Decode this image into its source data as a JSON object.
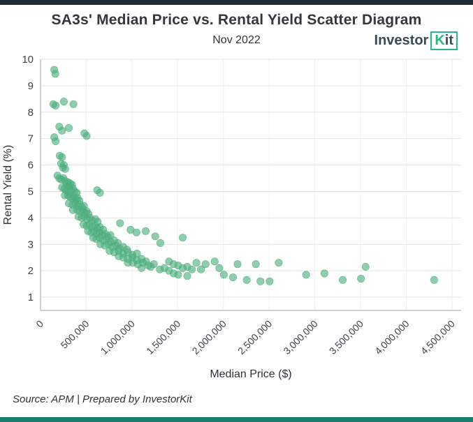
{
  "header": {
    "title": "SA3s' Median Price vs. Rental Yield Scatter Diagram",
    "subtitle": "Nov 2022",
    "logo": {
      "part1": "Investor",
      "part2_k": "K",
      "part2_it": "it"
    }
  },
  "footer": {
    "source": "Source: APM | Prepared by InvestorKit"
  },
  "colors": {
    "brand_green": "#2bb784",
    "point_green": "#4caf7d",
    "top_bar": "#212b36",
    "bottom_bar": "#1b7d6e",
    "gridline": "#e3e3e3",
    "axis_line": "#a6a6a6"
  },
  "chart_data": {
    "type": "scatter",
    "title": "SA3s' Median Price vs. Rental Yield Scatter Diagram",
    "subtitle": "Nov 2022",
    "xlabel": "Median Price ($)",
    "ylabel": "Rental Yield (%)",
    "xlim": [
      0,
      4600000
    ],
    "ylim": [
      0.5,
      10
    ],
    "grid": true,
    "legend": "none",
    "x_ticks": [
      0,
      500000,
      1000000,
      1500000,
      2000000,
      2500000,
      3000000,
      3500000,
      4000000,
      4500000
    ],
    "x_tick_labels": [
      "0",
      "500,000",
      "1,000,000",
      "1,500,000",
      "2,000,000",
      "2,500,000",
      "3,000,000",
      "3,500,000",
      "4,000,000",
      "4,500,000"
    ],
    "y_ticks": [
      1,
      2,
      3,
      4,
      5,
      6,
      7,
      8,
      9,
      10
    ],
    "point_color": "#4caf7d",
    "points": [
      [
        150000,
        9.6
      ],
      [
        162000,
        9.45
      ],
      [
        140000,
        8.3
      ],
      [
        165000,
        8.25
      ],
      [
        255000,
        8.4
      ],
      [
        360000,
        8.3
      ],
      [
        205000,
        7.45
      ],
      [
        235000,
        7.3
      ],
      [
        310000,
        7.4
      ],
      [
        150000,
        7.05
      ],
      [
        165000,
        6.9
      ],
      [
        480000,
        7.2
      ],
      [
        505000,
        7.1
      ],
      [
        210000,
        6.35
      ],
      [
        235000,
        6.3
      ],
      [
        225000,
        6.05
      ],
      [
        255000,
        6.0
      ],
      [
        245000,
        5.9
      ],
      [
        270000,
        5.85
      ],
      [
        185000,
        5.6
      ],
      [
        205000,
        5.5
      ],
      [
        225000,
        5.45
      ],
      [
        250000,
        5.5
      ],
      [
        270000,
        5.4
      ],
      [
        285000,
        5.3
      ],
      [
        300000,
        5.35
      ],
      [
        315000,
        5.2
      ],
      [
        325000,
        5.3
      ],
      [
        345000,
        5.25
      ],
      [
        235000,
        5.15
      ],
      [
        260000,
        5.1
      ],
      [
        280000,
        5.05
      ],
      [
        300000,
        5.0
      ],
      [
        330000,
        5.05
      ],
      [
        355000,
        5.1
      ],
      [
        375000,
        5.0
      ],
      [
        395000,
        4.95
      ],
      [
        620000,
        5.05
      ],
      [
        650000,
        4.95
      ],
      [
        265000,
        4.85
      ],
      [
        300000,
        4.85
      ],
      [
        320000,
        4.8
      ],
      [
        345000,
        4.75
      ],
      [
        365000,
        4.8
      ],
      [
        385000,
        4.7
      ],
      [
        405000,
        4.75
      ],
      [
        425000,
        4.65
      ],
      [
        310000,
        4.55
      ],
      [
        350000,
        4.5
      ],
      [
        380000,
        4.55
      ],
      [
        405000,
        4.45
      ],
      [
        430000,
        4.5
      ],
      [
        455000,
        4.4
      ],
      [
        475000,
        4.45
      ],
      [
        355000,
        4.3
      ],
      [
        400000,
        4.3
      ],
      [
        430000,
        4.25
      ],
      [
        460000,
        4.3
      ],
      [
        485000,
        4.2
      ],
      [
        505000,
        4.25
      ],
      [
        525000,
        4.15
      ],
      [
        415000,
        4.05
      ],
      [
        450000,
        4.0
      ],
      [
        480000,
        4.05
      ],
      [
        510000,
        3.95
      ],
      [
        540000,
        4.0
      ],
      [
        565000,
        3.9
      ],
      [
        600000,
        3.95
      ],
      [
        625000,
        3.85
      ],
      [
        870000,
        3.8
      ],
      [
        470000,
        3.75
      ],
      [
        505000,
        3.7
      ],
      [
        535000,
        3.75
      ],
      [
        565000,
        3.65
      ],
      [
        595000,
        3.7
      ],
      [
        620000,
        3.6
      ],
      [
        650000,
        3.65
      ],
      [
        685000,
        3.55
      ],
      [
        520000,
        3.5
      ],
      [
        555000,
        3.45
      ],
      [
        585000,
        3.5
      ],
      [
        615000,
        3.4
      ],
      [
        645000,
        3.45
      ],
      [
        675000,
        3.35
      ],
      [
        705000,
        3.4
      ],
      [
        735000,
        3.3
      ],
      [
        765000,
        3.35
      ],
      [
        575000,
        3.25
      ],
      [
        610000,
        3.2
      ],
      [
        645000,
        3.25
      ],
      [
        685000,
        3.15
      ],
      [
        725000,
        3.2
      ],
      [
        765000,
        3.1
      ],
      [
        805000,
        3.15
      ],
      [
        845000,
        3.05
      ],
      [
        655000,
        3.0
      ],
      [
        705000,
        2.95
      ],
      [
        745000,
        3.0
      ],
      [
        785000,
        2.9
      ],
      [
        825000,
        2.95
      ],
      [
        865000,
        2.85
      ],
      [
        905000,
        2.9
      ],
      [
        945000,
        2.8
      ],
      [
        755000,
        2.75
      ],
      [
        805000,
        2.7
      ],
      [
        855000,
        2.75
      ],
      [
        905000,
        2.65
      ],
      [
        955000,
        2.7
      ],
      [
        1005000,
        2.6
      ],
      [
        1055000,
        2.65
      ],
      [
        855000,
        2.55
      ],
      [
        905000,
        2.5
      ],
      [
        955000,
        2.45
      ],
      [
        1005000,
        2.5
      ],
      [
        1055000,
        2.4
      ],
      [
        1105000,
        2.45
      ],
      [
        1155000,
        2.35
      ],
      [
        955000,
        2.3
      ],
      [
        1010000,
        2.3
      ],
      [
        1065000,
        2.25
      ],
      [
        1120000,
        2.3
      ],
      [
        1180000,
        2.2
      ],
      [
        1240000,
        2.25
      ],
      [
        985000,
        3.55
      ],
      [
        1050000,
        3.45
      ],
      [
        1150000,
        3.5
      ],
      [
        1255000,
        3.3
      ],
      [
        1310000,
        3.05
      ],
      [
        1555000,
        3.25
      ],
      [
        1105000,
        2.1
      ],
      [
        1205000,
        2.15
      ],
      [
        1305000,
        2.05
      ],
      [
        1355000,
        2.1
      ],
      [
        1405000,
        2.0
      ],
      [
        1405000,
        2.35
      ],
      [
        1455000,
        2.25
      ],
      [
        1505000,
        2.2
      ],
      [
        1555000,
        2.1
      ],
      [
        1605000,
        2.15
      ],
      [
        1655000,
        2.05
      ],
      [
        1455000,
        1.9
      ],
      [
        1505000,
        1.85
      ],
      [
        1605000,
        1.8
      ],
      [
        1705000,
        2.3
      ],
      [
        1755000,
        2.05
      ],
      [
        1805000,
        2.25
      ],
      [
        1905000,
        2.35
      ],
      [
        1955000,
        2.1
      ],
      [
        2005000,
        1.85
      ],
      [
        2105000,
        1.75
      ],
      [
        2155000,
        2.25
      ],
      [
        2255000,
        1.65
      ],
      [
        2355000,
        2.25
      ],
      [
        2405000,
        1.6
      ],
      [
        2505000,
        1.6
      ],
      [
        2605000,
        2.3
      ],
      [
        2905000,
        1.85
      ],
      [
        3105000,
        1.9
      ],
      [
        3305000,
        1.65
      ],
      [
        3505000,
        1.7
      ],
      [
        3555000,
        2.15
      ],
      [
        4305000,
        1.65
      ]
    ]
  }
}
